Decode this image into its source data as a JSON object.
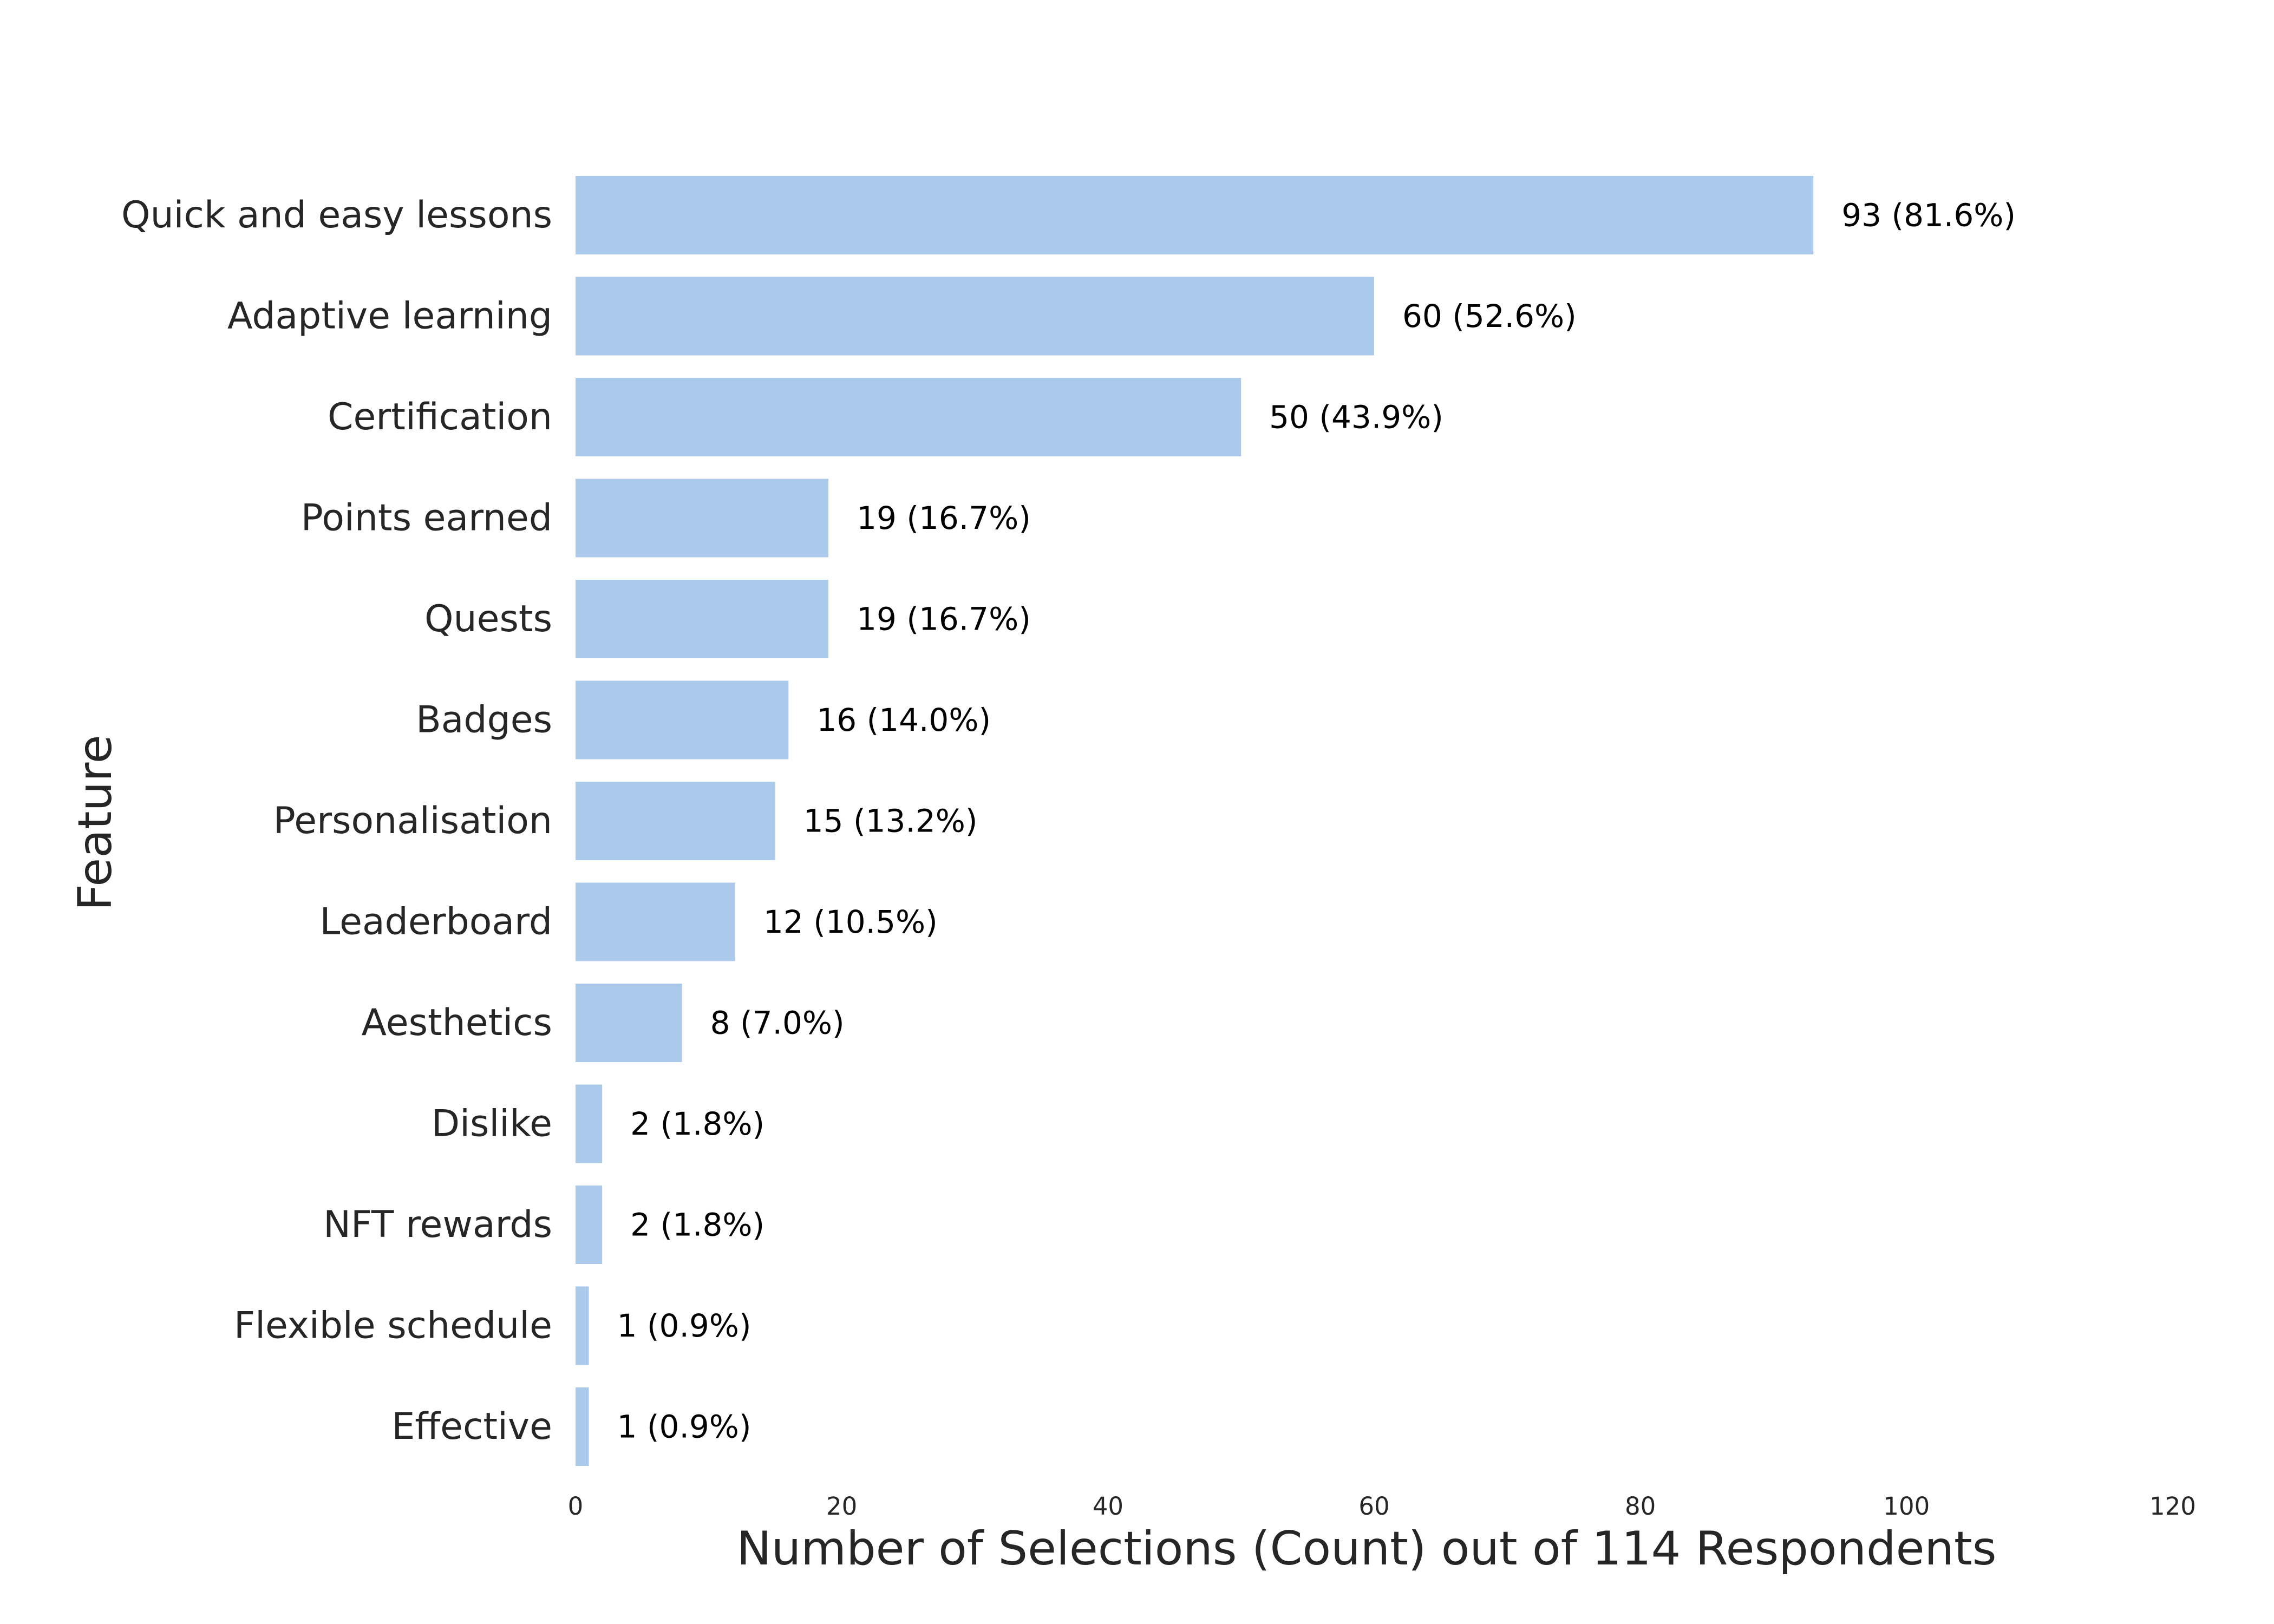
{
  "chart_data": {
    "type": "bar",
    "orientation": "horizontal",
    "title": "",
    "xlabel": "Number of Selections (Count) out of 114 Respondents",
    "ylabel": "Feature",
    "xlim": [
      0,
      120
    ],
    "xticks": [
      0,
      20,
      40,
      60,
      80,
      100,
      120
    ],
    "grid": false,
    "bar_color": "#abc9eb",
    "categories": [
      "Quick and easy lessons",
      "Adaptive learning",
      "Certification",
      "Points earned",
      "Quests",
      "Badges",
      "Personalisation",
      "Leaderboard",
      "Aesthetics",
      "Dislike",
      "NFT rewards",
      "Flexible schedule",
      "Effective"
    ],
    "values": [
      93,
      60,
      50,
      19,
      19,
      16,
      15,
      12,
      8,
      2,
      2,
      1,
      1
    ],
    "value_labels": [
      "93 (81.6%)",
      "60 (52.6%)",
      "50 (43.9%)",
      "19 (16.7%)",
      "19 (16.7%)",
      "16 (14.0%)",
      "15 (13.2%)",
      "12 (10.5%)",
      "8 (7.0%)",
      "2 (1.8%)",
      "2 (1.8%)",
      "1 (0.9%)",
      "1 (0.9%)"
    ]
  }
}
